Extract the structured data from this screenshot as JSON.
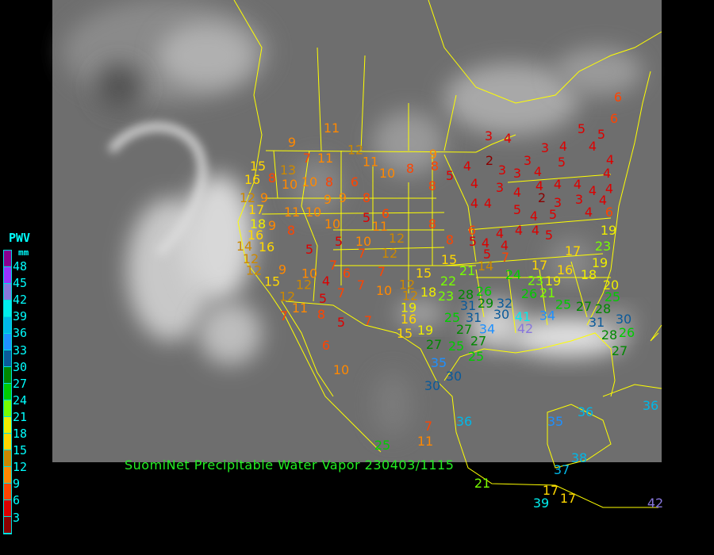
{
  "title": "SuomiNet Precipitable Water Vapor 230403/1115",
  "legend": {
    "title": "PWV",
    "unit": "mm",
    "labels": [
      "48",
      "45",
      "42",
      "39",
      "36",
      "33",
      "30",
      "27",
      "24",
      "21",
      "18",
      "15",
      "12",
      "9",
      "6",
      "3"
    ],
    "colors": [
      "#8a0090",
      "#9933ff",
      "#8877dd",
      "#00eeee",
      "#00b8e8",
      "#1e90ff",
      "#0a5a9a",
      "#008800",
      "#00cc00",
      "#77ff00",
      "#eeee00",
      "#ffd700",
      "#cc8800",
      "#ff8800",
      "#ff4400",
      "#dd0000",
      "#8b0000"
    ]
  },
  "map": {
    "background": "#6e6e6e",
    "border_color": "#ffff00"
  },
  "stations": [
    {
      "value": "11"
    },
    {
      "value": "9"
    },
    {
      "value": "7"
    },
    {
      "value": "11"
    },
    {
      "value": "12"
    },
    {
      "value": "15"
    },
    {
      "value": "13"
    },
    {
      "value": "11"
    },
    {
      "value": "10"
    },
    {
      "value": "8"
    },
    {
      "value": "9"
    },
    {
      "value": "8"
    },
    {
      "value": "10"
    },
    {
      "value": "10"
    },
    {
      "value": "8"
    },
    {
      "value": "6"
    },
    {
      "value": "16"
    },
    {
      "value": "8"
    },
    {
      "value": "12"
    },
    {
      "value": "9"
    },
    {
      "value": "9"
    },
    {
      "value": "9"
    },
    {
      "value": "8"
    },
    {
      "value": "5"
    },
    {
      "value": "6"
    },
    {
      "value": "8"
    },
    {
      "value": "8"
    },
    {
      "value": "17"
    },
    {
      "value": "11"
    },
    {
      "value": "10"
    },
    {
      "value": "18"
    },
    {
      "value": "9"
    },
    {
      "value": "16"
    },
    {
      "value": "8"
    },
    {
      "value": "10"
    },
    {
      "value": "10"
    },
    {
      "value": "11"
    },
    {
      "value": "12"
    },
    {
      "value": "14"
    },
    {
      "value": "16"
    },
    {
      "value": "12"
    },
    {
      "value": "5"
    },
    {
      "value": "7"
    },
    {
      "value": "6"
    },
    {
      "value": "5"
    },
    {
      "value": "7"
    },
    {
      "value": "12"
    },
    {
      "value": "12"
    },
    {
      "value": "9"
    },
    {
      "value": "10"
    },
    {
      "value": "4"
    },
    {
      "value": "7"
    },
    {
      "value": "7"
    },
    {
      "value": "15"
    },
    {
      "value": "12"
    },
    {
      "value": "5"
    },
    {
      "value": "7"
    },
    {
      "value": "10"
    },
    {
      "value": "15"
    },
    {
      "value": "12"
    },
    {
      "value": "12"
    },
    {
      "value": "11"
    },
    {
      "value": "7"
    },
    {
      "value": "8"
    },
    {
      "value": "5"
    },
    {
      "value": "7"
    },
    {
      "value": "19"
    },
    {
      "value": "12"
    },
    {
      "value": "16"
    },
    {
      "value": "19"
    },
    {
      "value": "15"
    },
    {
      "value": "6"
    },
    {
      "value": "10"
    },
    {
      "value": "15"
    },
    {
      "value": "21"
    },
    {
      "value": "14"
    },
    {
      "value": "7"
    },
    {
      "value": "8"
    },
    {
      "value": "6"
    },
    {
      "value": "5"
    },
    {
      "value": "4"
    },
    {
      "value": "4"
    },
    {
      "value": "5"
    },
    {
      "value": "4"
    },
    {
      "value": "4"
    },
    {
      "value": "4"
    },
    {
      "value": "5"
    },
    {
      "value": "3"
    },
    {
      "value": "4"
    },
    {
      "value": "5"
    },
    {
      "value": "4"
    },
    {
      "value": "2"
    },
    {
      "value": "3"
    },
    {
      "value": "3"
    },
    {
      "value": "4"
    },
    {
      "value": "3"
    },
    {
      "value": "4"
    },
    {
      "value": "4"
    },
    {
      "value": "5"
    },
    {
      "value": "5"
    },
    {
      "value": "6"
    },
    {
      "value": "6"
    },
    {
      "value": "4"
    },
    {
      "value": "4"
    },
    {
      "value": "4"
    },
    {
      "value": "3"
    },
    {
      "value": "4"
    },
    {
      "value": "3"
    },
    {
      "value": "4"
    },
    {
      "value": "2"
    },
    {
      "value": "4"
    },
    {
      "value": "4"
    },
    {
      "value": "4"
    },
    {
      "value": "4"
    },
    {
      "value": "4"
    },
    {
      "value": "4"
    },
    {
      "value": "5"
    },
    {
      "value": "4"
    },
    {
      "value": "5"
    },
    {
      "value": "3"
    },
    {
      "value": "4"
    },
    {
      "value": "4"
    },
    {
      "value": "3"
    },
    {
      "value": "5"
    },
    {
      "value": "6"
    },
    {
      "value": "19"
    },
    {
      "value": "23"
    },
    {
      "value": "19"
    },
    {
      "value": "17"
    },
    {
      "value": "17"
    },
    {
      "value": "16"
    },
    {
      "value": "18"
    },
    {
      "value": "24"
    },
    {
      "value": "23"
    },
    {
      "value": "19"
    },
    {
      "value": "21"
    },
    {
      "value": "26"
    },
    {
      "value": "22"
    },
    {
      "value": "18"
    },
    {
      "value": "23"
    },
    {
      "value": "28"
    },
    {
      "value": "26"
    },
    {
      "value": "29"
    },
    {
      "value": "32"
    },
    {
      "value": "31"
    },
    {
      "value": "31"
    },
    {
      "value": "30"
    },
    {
      "value": "25"
    },
    {
      "value": "27"
    },
    {
      "value": "34"
    },
    {
      "value": "41"
    },
    {
      "value": "42"
    },
    {
      "value": "34"
    },
    {
      "value": "25"
    },
    {
      "value": "27"
    },
    {
      "value": "28"
    },
    {
      "value": "25"
    },
    {
      "value": "31"
    },
    {
      "value": "30"
    },
    {
      "value": "28"
    },
    {
      "value": "26"
    },
    {
      "value": "27"
    },
    {
      "value": "27"
    },
    {
      "value": "25"
    },
    {
      "value": "27"
    },
    {
      "value": "25"
    },
    {
      "value": "35"
    },
    {
      "value": "30"
    },
    {
      "value": "30"
    },
    {
      "value": "36"
    },
    {
      "value": "36"
    },
    {
      "value": "35"
    },
    {
      "value": "36"
    },
    {
      "value": "37"
    },
    {
      "value": "38"
    },
    {
      "value": "39"
    },
    {
      "value": "17"
    },
    {
      "value": "17"
    },
    {
      "value": "21"
    },
    {
      "value": "11"
    },
    {
      "value": "7"
    },
    {
      "value": "25"
    },
    {
      "value": "20"
    },
    {
      "value": "42"
    }
  ]
}
